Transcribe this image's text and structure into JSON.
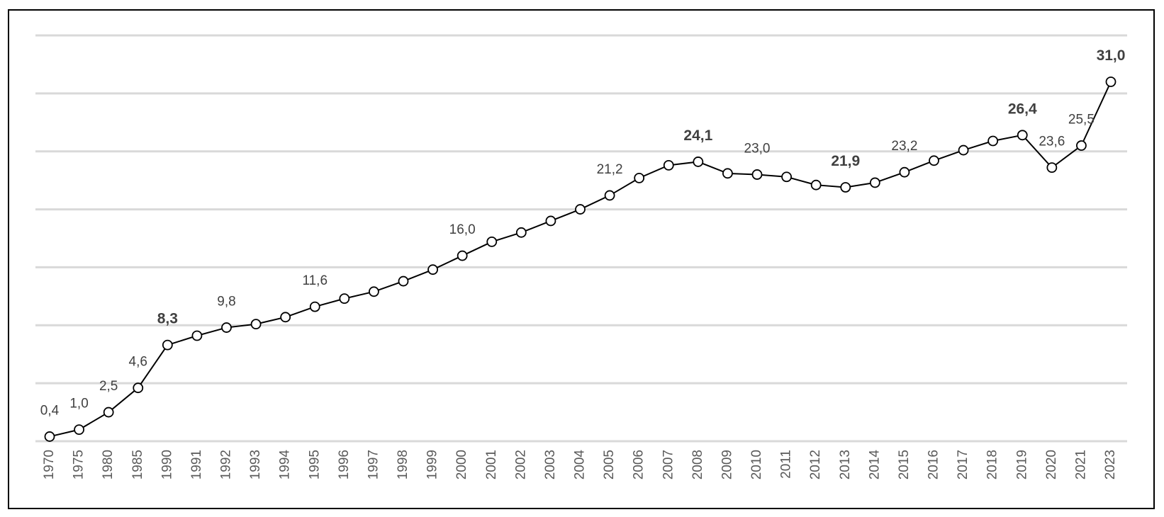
{
  "chart_data": {
    "type": "line",
    "categories": [
      "1970",
      "1975",
      "1980",
      "1985",
      "1990",
      "1991",
      "1992",
      "1993",
      "1994",
      "1995",
      "1996",
      "1997",
      "1998",
      "1999",
      "2000",
      "2001",
      "2002",
      "2003",
      "2004",
      "2005",
      "2006",
      "2007",
      "2008",
      "2009",
      "2010",
      "2011",
      "2012",
      "2013",
      "2014",
      "2015",
      "2016",
      "2017",
      "2018",
      "2019",
      "2020",
      "2021",
      "2023"
    ],
    "values": [
      0.4,
      1.0,
      2.5,
      4.6,
      8.3,
      9.1,
      9.8,
      10.1,
      10.7,
      11.6,
      12.3,
      12.9,
      13.8,
      14.8,
      16.0,
      17.2,
      18.0,
      19.0,
      20.0,
      21.2,
      22.7,
      23.8,
      24.1,
      23.1,
      23.0,
      22.8,
      22.1,
      21.9,
      22.3,
      23.2,
      24.2,
      25.1,
      25.9,
      26.4,
      23.6,
      25.5,
      31.0
    ],
    "value_labels": [
      "0,4",
      "1,0",
      "2,5",
      "4,6",
      "8,3",
      null,
      "9,8",
      null,
      null,
      "11,6",
      null,
      null,
      null,
      null,
      "16,0",
      null,
      null,
      null,
      null,
      "21,2",
      null,
      null,
      "24,1",
      null,
      "23,0",
      null,
      null,
      "21,9",
      null,
      "23,2",
      null,
      null,
      null,
      "26,4",
      "23,6",
      "25,5",
      "31,0"
    ],
    "bold_value_labels": [
      4,
      22,
      27,
      33,
      36
    ],
    "color": "#000000",
    "ylim": [
      0,
      35
    ],
    "yticks": [
      0,
      5,
      10,
      15,
      20,
      25,
      30,
      35
    ],
    "grid": true
  }
}
